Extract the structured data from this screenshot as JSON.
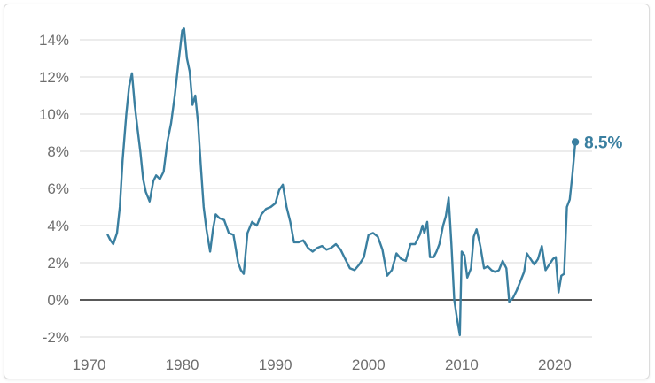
{
  "chart_data": {
    "type": "line",
    "title": "",
    "xlabel": "",
    "ylabel": "",
    "xlim": [
      1969,
      2024
    ],
    "ylim": [
      -2,
      14
    ],
    "y_ticks": [
      -2,
      0,
      2,
      4,
      6,
      8,
      10,
      12,
      14
    ],
    "y_tick_labels": [
      "-2%",
      "0%",
      "2%",
      "4%",
      "6%",
      "8%",
      "10%",
      "12%",
      "14%"
    ],
    "x_ticks": [
      1970,
      1980,
      1990,
      2000,
      2010,
      2020
    ],
    "x_tick_labels": [
      "1970",
      "1980",
      "1990",
      "2000",
      "2010",
      "2020"
    ],
    "grid": "horizontal",
    "zero_line": true,
    "line_color": "#3a7fa0",
    "end_label": "8.5%",
    "series": [
      {
        "x": [
          1972.0,
          1972.3,
          1972.6,
          1973.0,
          1973.3,
          1973.6,
          1974.0,
          1974.3,
          1974.6,
          1974.9,
          1975.2,
          1975.5,
          1975.8,
          1976.1,
          1976.5,
          1976.9,
          1977.2,
          1977.6,
          1978.0,
          1978.4,
          1978.8,
          1979.2,
          1979.6,
          1980.0,
          1980.2,
          1980.5,
          1980.8,
          1981.1,
          1981.4,
          1981.7,
          1982.0,
          1982.3,
          1982.6,
          1983.0,
          1983.3,
          1983.6,
          1984.0,
          1984.5,
          1985.0,
          1985.5,
          1986.0,
          1986.3,
          1986.6,
          1987.0,
          1987.5,
          1988.0,
          1988.5,
          1989.0,
          1989.5,
          1990.0,
          1990.4,
          1990.8,
          1991.2,
          1991.6,
          1992.0,
          1992.5,
          1993.0,
          1993.5,
          1994.0,
          1994.5,
          1995.0,
          1995.5,
          1996.0,
          1996.5,
          1997.0,
          1997.5,
          1998.0,
          1998.5,
          1999.0,
          1999.5,
          2000.0,
          2000.5,
          2001.0,
          2001.5,
          2002.0,
          2002.5,
          2003.0,
          2003.5,
          2004.0,
          2004.5,
          2005.0,
          2005.5,
          2005.8,
          2006.0,
          2006.3,
          2006.6,
          2007.0,
          2007.3,
          2007.6,
          2008.0,
          2008.3,
          2008.6,
          2008.9,
          2009.2,
          2009.5,
          2009.8,
          2010.0,
          2010.3,
          2010.6,
          2011.0,
          2011.3,
          2011.6,
          2012.0,
          2012.4,
          2012.8,
          2013.2,
          2013.6,
          2014.0,
          2014.4,
          2014.8,
          2015.1,
          2015.5,
          2015.9,
          2016.3,
          2016.7,
          2017.0,
          2017.4,
          2017.8,
          2018.2,
          2018.6,
          2019.0,
          2019.4,
          2019.8,
          2020.1,
          2020.4,
          2020.7,
          2021.0,
          2021.3,
          2021.6,
          2021.9,
          2022.2
        ],
        "y": [
          3.5,
          3.2,
          3.0,
          3.6,
          5.0,
          7.5,
          10.0,
          11.5,
          12.2,
          10.5,
          9.2,
          8.0,
          6.5,
          5.8,
          5.3,
          6.4,
          6.7,
          6.5,
          6.9,
          8.5,
          9.5,
          11.0,
          12.8,
          14.5,
          14.6,
          13.0,
          12.3,
          10.5,
          11.0,
          9.5,
          7.2,
          5.0,
          3.8,
          2.6,
          3.8,
          4.6,
          4.4,
          4.3,
          3.6,
          3.5,
          2.0,
          1.6,
          1.4,
          3.6,
          4.2,
          4.0,
          4.6,
          4.9,
          5.0,
          5.2,
          5.9,
          6.2,
          5.0,
          4.2,
          3.1,
          3.1,
          3.2,
          2.8,
          2.6,
          2.8,
          2.9,
          2.7,
          2.8,
          3.0,
          2.7,
          2.2,
          1.7,
          1.6,
          1.9,
          2.3,
          3.5,
          3.6,
          3.4,
          2.7,
          1.3,
          1.6,
          2.5,
          2.2,
          2.1,
          3.0,
          3.0,
          3.5,
          4.0,
          3.6,
          4.2,
          2.3,
          2.3,
          2.6,
          3.0,
          4.0,
          4.5,
          5.5,
          3.0,
          0.0,
          -1.0,
          -1.9,
          2.6,
          2.4,
          1.2,
          1.7,
          3.4,
          3.8,
          2.9,
          1.7,
          1.8,
          1.6,
          1.5,
          1.6,
          2.1,
          1.7,
          -0.1,
          0.1,
          0.5,
          1.0,
          1.5,
          2.5,
          2.2,
          1.9,
          2.2,
          2.9,
          1.6,
          1.9,
          2.2,
          2.3,
          0.4,
          1.3,
          1.4,
          5.0,
          5.4,
          6.8,
          8.5
        ]
      }
    ]
  }
}
